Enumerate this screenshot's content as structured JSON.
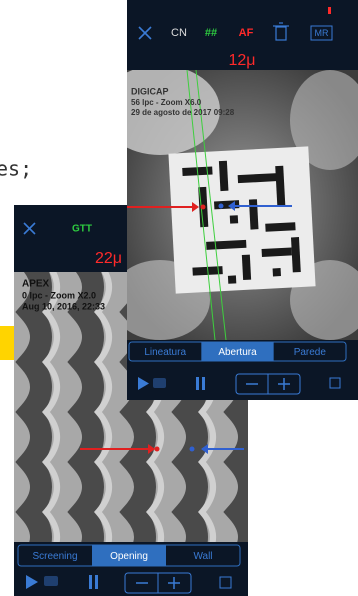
{
  "background_code": "es;",
  "back_screen": {
    "toolbar": [
      "CN",
      "##",
      "AF",
      "MR"
    ],
    "measurement": "12μ",
    "overlay": [
      "DIGICAP",
      "56 lpc - Zoom X6.0",
      "29 de agosto de 2017 09:28"
    ],
    "tabs": [
      "Lineatura",
      "Abertura",
      "Parede"
    ],
    "selected_tab": 1
  },
  "front_screen": {
    "app_label": "GTT",
    "measurement": "22μ",
    "overlay": [
      "APEX",
      "0 lpc - Zoom X2.0",
      "Aug 10, 2016, 22:33"
    ],
    "tabs": [
      "Screening",
      "Opening",
      "Wall"
    ],
    "selected_tab": 1
  }
}
